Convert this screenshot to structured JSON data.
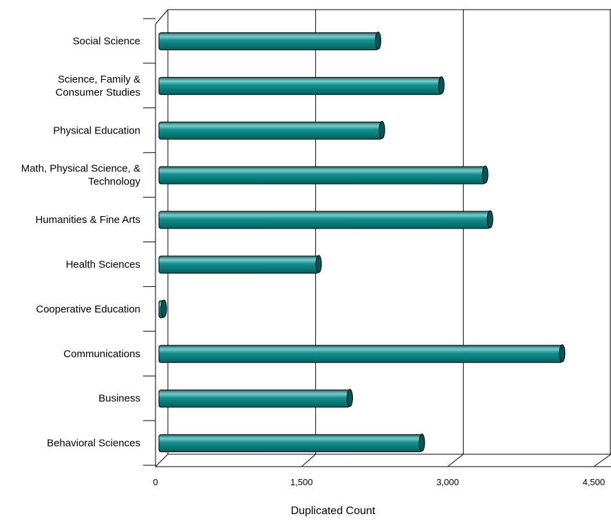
{
  "chart_data": {
    "type": "bar",
    "orientation": "horizontal",
    "categories": [
      "Social Science",
      "Science, Family & Consumer Studies",
      "Physical Education",
      "Math, Physical Science, & Technology",
      "Humanities & Fine Arts",
      "Health Sciences",
      "Cooperative Education",
      "Communications",
      "Business",
      "Behavioral Sciences"
    ],
    "category_label_lines": [
      [
        "Social Science"
      ],
      [
        "Science, Family &",
        "Consumer Studies"
      ],
      [
        "Physical Education"
      ],
      [
        "Math, Physical Science, &",
        "Technology"
      ],
      [
        "Humanities & Fine Arts"
      ],
      [
        "Health Sciences"
      ],
      [
        "Cooperative Education"
      ],
      [
        "Communications"
      ],
      [
        "Business"
      ],
      [
        "Behavioral Sciences"
      ]
    ],
    "values": [
      2250,
      2900,
      2290,
      3350,
      3400,
      1640,
      50,
      4140,
      1960,
      2700
    ],
    "xlabel": "Duplicated Count",
    "ylabel": "",
    "xlim": [
      0,
      4500
    ],
    "xticks": [
      0,
      1500,
      3000,
      4500
    ],
    "xtick_labels": [
      "0",
      "1,500",
      "3,000",
      "4,500"
    ],
    "grid": true,
    "legend": "none",
    "bar_color": "#0f8080",
    "bar_highlight": "#6cc3c3",
    "bar_shadow": "#075555"
  }
}
